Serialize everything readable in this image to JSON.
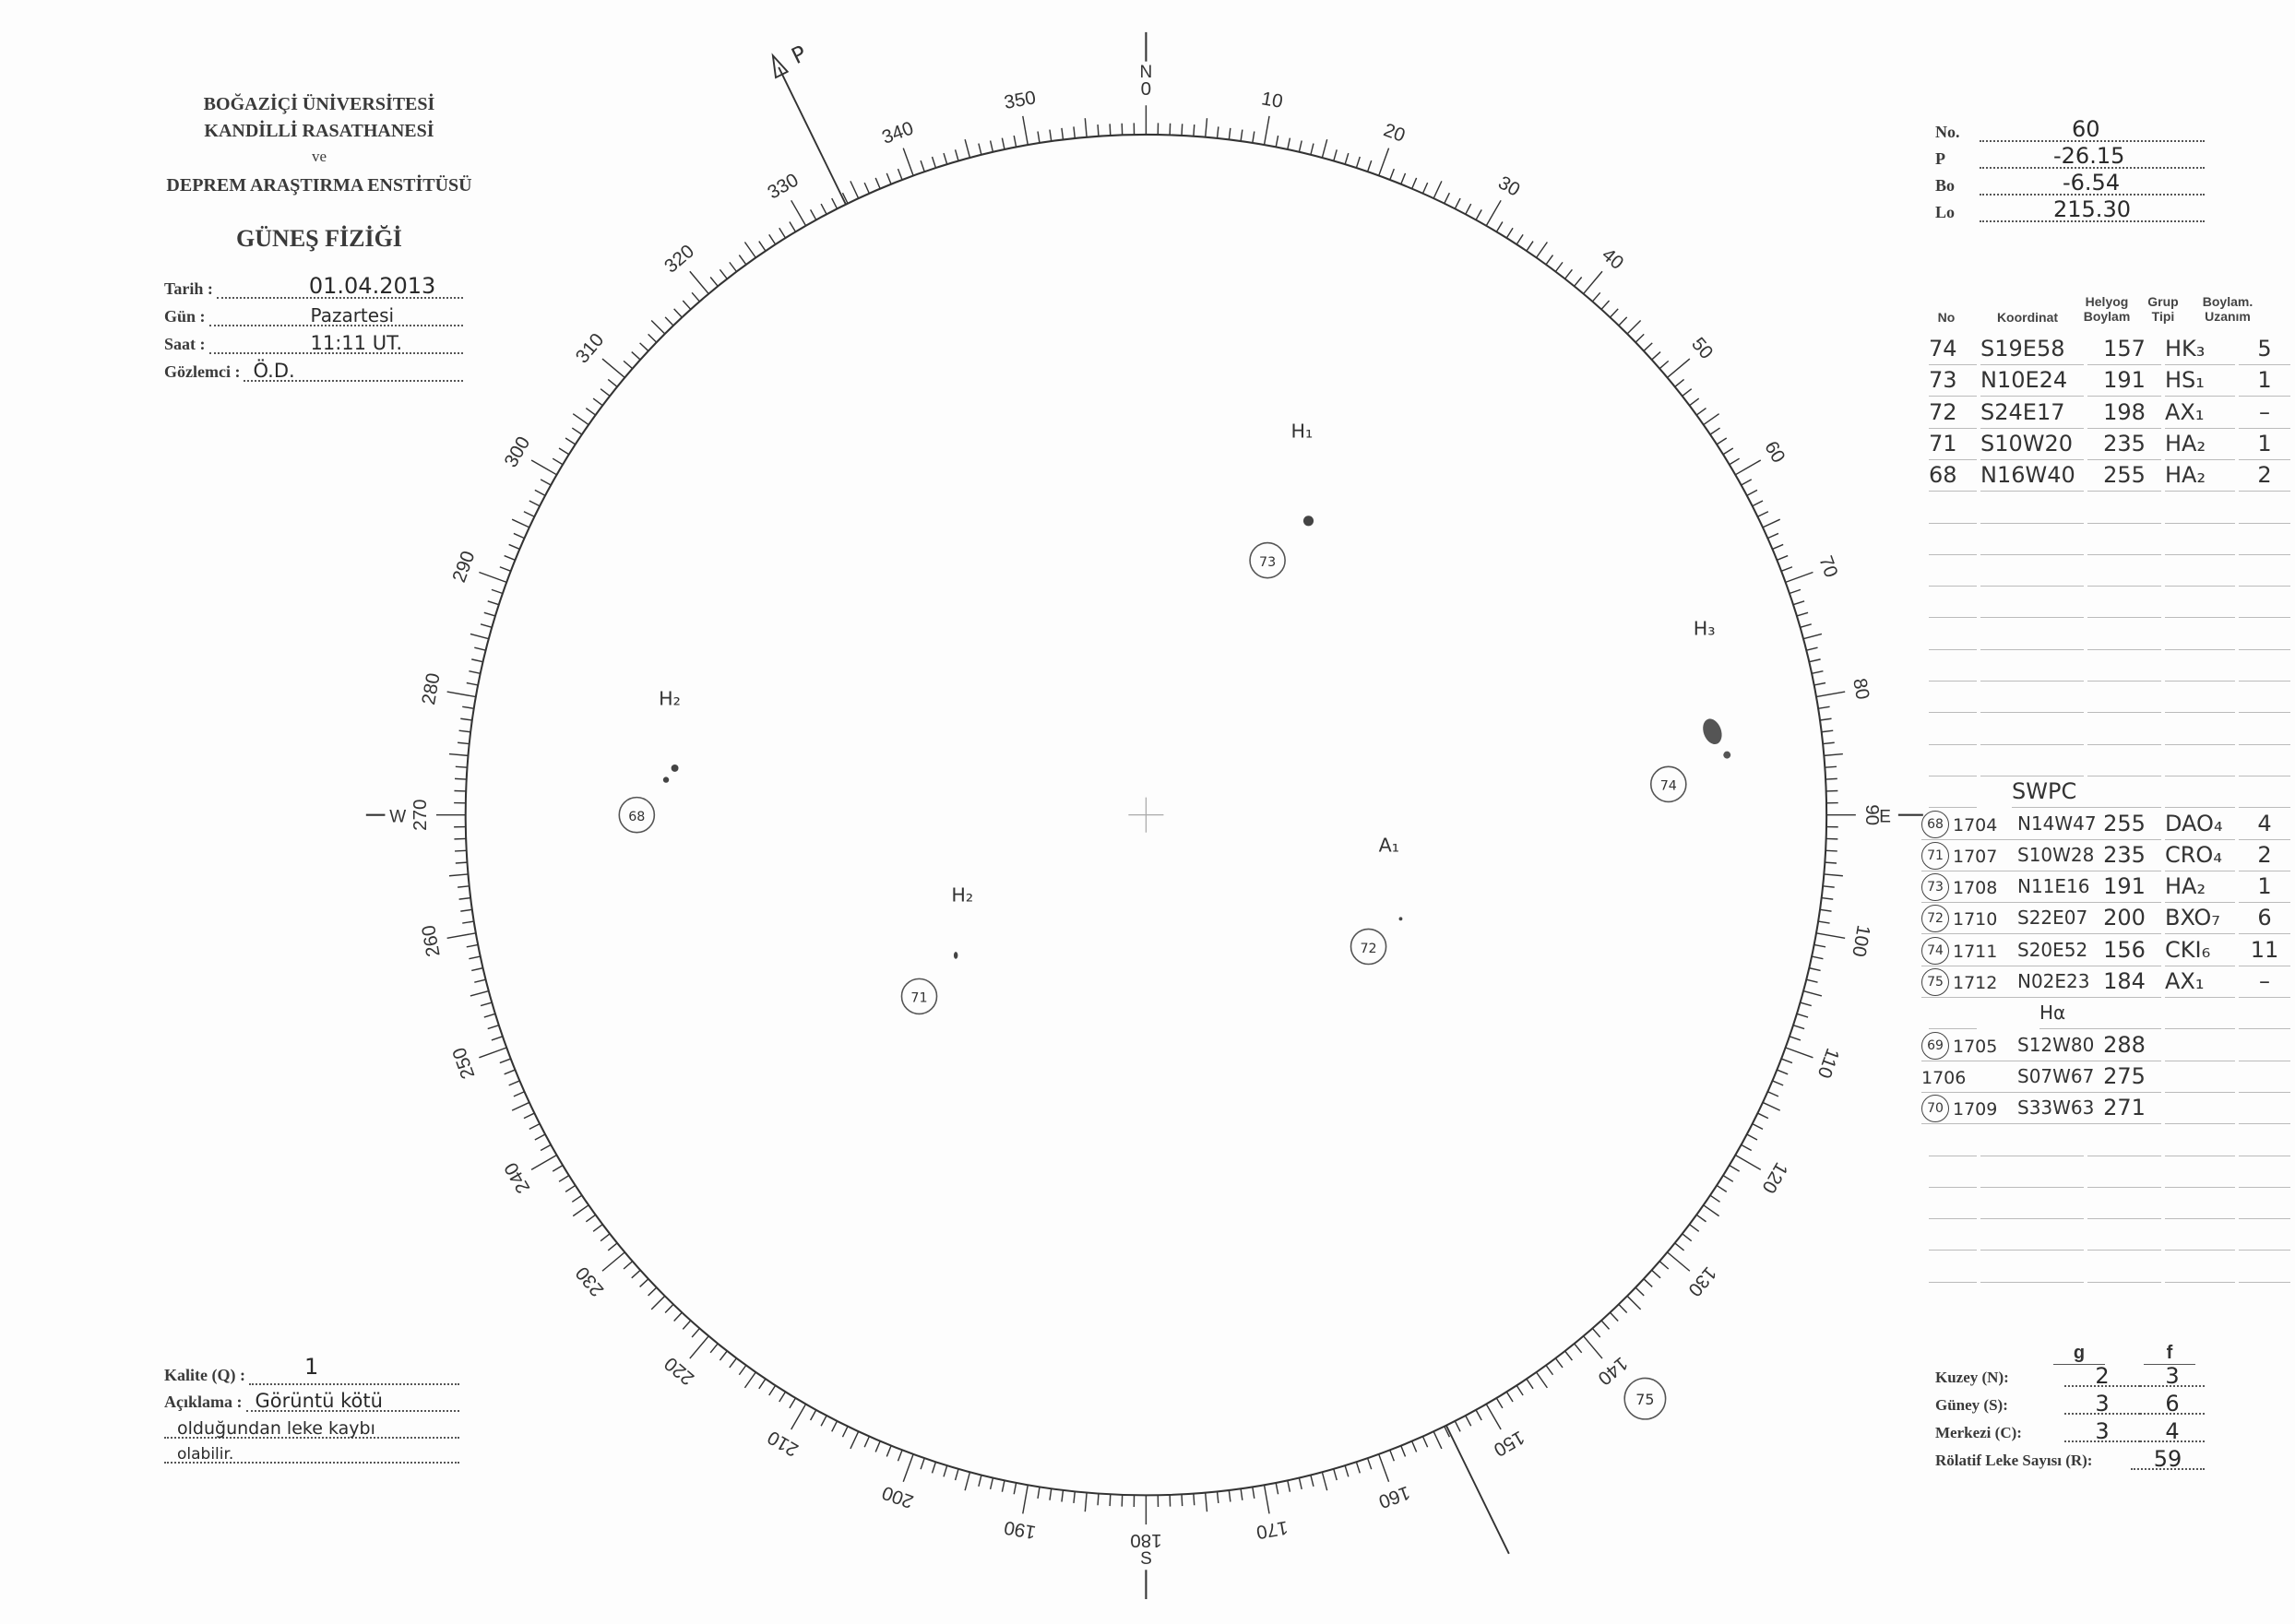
{
  "institution": {
    "line1": "BOĞAZİÇİ ÜNİVERSİTESİ",
    "line2": "KANDİLLİ RASATHANESİ",
    "line3": "ve",
    "line4": "DEPREM ARAŞTIRMA ENSTİTÜSÜ",
    "department": "GÜNEŞ FİZİĞİ"
  },
  "observation": {
    "date_label": "Tarih :",
    "date_value": "01.04.2013",
    "day_label": "Gün :",
    "day_value": "Pazartesi",
    "time_label": "Saat :",
    "time_value": "11:11 UT.",
    "observer_label": "Gözlemci :",
    "observer_value": "Ö.D."
  },
  "parameters": {
    "no_label": "No.",
    "no_value": "60",
    "p_label": "P",
    "p_value": "-26.15",
    "bo_label": "Bo",
    "bo_value": "-6.54",
    "lo_label": "Lo",
    "lo_value": "215.30"
  },
  "table": {
    "headers": [
      "No",
      "Koordinat",
      "Helyog Boylam",
      "Grup Tipi",
      "Boylam. Uzanım"
    ],
    "rows": [
      [
        "74",
        "S19E58",
        "157",
        "HK₃",
        "5"
      ],
      [
        "73",
        "N10E24",
        "191",
        "HS₁",
        "1"
      ],
      [
        "72",
        "S24E17",
        "198",
        "AX₁",
        "–"
      ],
      [
        "71",
        "S10W20",
        "235",
        "HA₂",
        "1"
      ],
      [
        "68",
        "N16W40",
        "255",
        "HA₂",
        "2"
      ]
    ],
    "swpc_label": "SWPC",
    "swpc_rows": [
      [
        "68",
        "1704",
        "N14W47",
        "255",
        "DAO₄",
        "4"
      ],
      [
        "71",
        "1707",
        "S10W28",
        "235",
        "CRO₄",
        "2"
      ],
      [
        "73",
        "1708",
        "N11E16",
        "191",
        "HA₂",
        "1"
      ],
      [
        "72",
        "1710",
        "S22E07",
        "200",
        "BXO₇",
        "6"
      ],
      [
        "74",
        "1711",
        "S20E52",
        "156",
        "CKI₆",
        "11"
      ],
      [
        "75",
        "1712",
        "N02E23",
        "184",
        "AX₁",
        "–"
      ]
    ],
    "halpha_label": "Hα",
    "halpha_rows": [
      [
        "69",
        "1705",
        "S12W80",
        "288"
      ],
      [
        "",
        "1706",
        "S07W67",
        "275"
      ],
      [
        "70",
        "1709",
        "S33W63",
        "271"
      ]
    ]
  },
  "disk": {
    "cardinal": {
      "north": "N",
      "south": "S",
      "east": "E",
      "west": "W"
    },
    "p_axis_label": "P",
    "p_angle_deg": -26.15,
    "scale_labels": [
      "0",
      "10",
      "20",
      "30",
      "40",
      "50",
      "60",
      "70",
      "80",
      "90",
      "100",
      "110",
      "120",
      "130",
      "140",
      "150",
      "160",
      "170",
      "180",
      "190",
      "200",
      "210",
      "220",
      "230",
      "240",
      "250",
      "260",
      "270",
      "280",
      "290",
      "300",
      "310",
      "320",
      "330",
      "340",
      "350"
    ],
    "groups": [
      {
        "number": "73",
        "class_label": "H₁"
      },
      {
        "number": "74",
        "class_label": "H₃"
      },
      {
        "number": "68",
        "class_label": "H₂"
      },
      {
        "number": "72",
        "class_label": "A₁"
      },
      {
        "number": "71",
        "class_label": "H₂"
      },
      {
        "number": "75",
        "class_label": ""
      }
    ]
  },
  "quality": {
    "quality_label": "Kalite (Q) :",
    "quality_value": "1",
    "note_label": "Açıklama :",
    "note_line1": "Görüntü kötü",
    "note_line2": "olduğundan leke kaybı",
    "note_line3": "olabilir."
  },
  "counts": {
    "g_header": "g",
    "f_header": "f",
    "north_label": "Kuzey (N):",
    "north_g": "2",
    "north_f": "3",
    "south_label": "Güney (S):",
    "south_g": "3",
    "south_f": "6",
    "center_label": "Merkezi (C):",
    "center_g": "3",
    "center_f": "4",
    "r_label": "Rölatif Leke Sayısı (R):",
    "r_value": "59"
  }
}
